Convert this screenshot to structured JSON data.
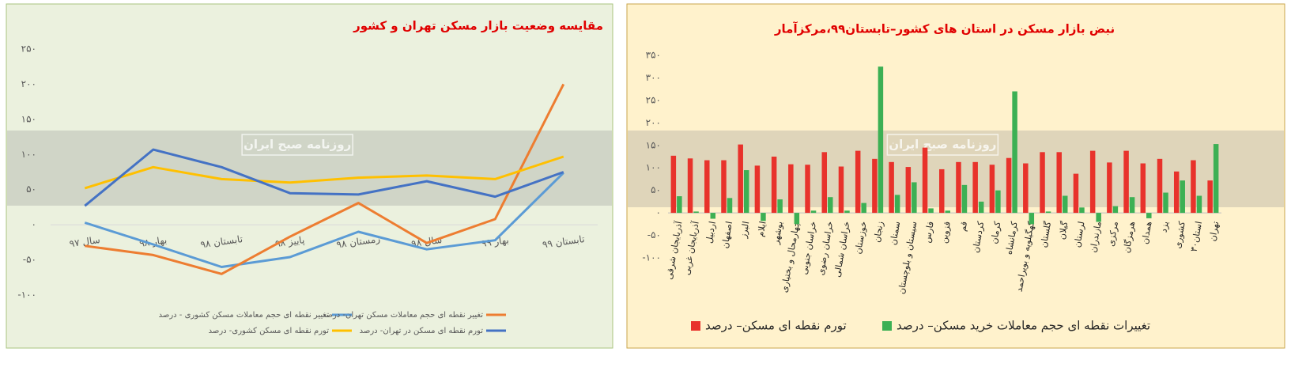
{
  "chart_data": [
    {
      "type": "line",
      "title": "مقایسه وضعیت بازار مسکن تهران و کشور",
      "watermark": "روزنامه صبح ایران",
      "categories": [
        "سال ۹۷",
        "بهار ۹۸",
        "تابستان ۹۸",
        "پاییز ۹۸",
        "زمستان ۹۸",
        "سال ۹۸",
        "بهار ۹۹",
        "تابستان ۹۹"
      ],
      "series": [
        {
          "name": "تغییر نقطه ای حجم معاملات مسکن کشوری - درصد",
          "color": "#5b9bd5",
          "values": [
            3,
            -28,
            -60,
            -46,
            -10,
            -35,
            -22,
            74
          ]
        },
        {
          "name": "تغییر نقطه ای حجم معاملات مسکن تهران- درصد",
          "color": "#ed7d31",
          "values": [
            -30,
            -43,
            -70,
            -17,
            31,
            -26,
            8,
            200
          ]
        },
        {
          "name": "تورم نقطه ای مسکن کشوری- درصد",
          "color": "#ffc000",
          "values": [
            52,
            82,
            65,
            60,
            67,
            70,
            65,
            97
          ]
        },
        {
          "name": "تورم نقطه ای مسکن در تهران- درصد",
          "color": "#4472c4",
          "values": [
            27,
            107,
            82,
            45,
            43,
            62,
            40,
            75
          ]
        }
      ],
      "ylim": [
        -100,
        250
      ],
      "yticks": [
        {
          "value": -100,
          "label": "-۱۰۰"
        },
        {
          "value": -50,
          "label": "-۵۰"
        },
        {
          "value": 0,
          "label": "۰"
        },
        {
          "value": 50,
          "label": "۵۰"
        },
        {
          "value": 100,
          "label": "۱۰۰"
        },
        {
          "value": 150,
          "label": "۱۵۰"
        },
        {
          "value": 200,
          "label": "۲۰۰"
        },
        {
          "value": 250,
          "label": "۲۵۰"
        }
      ]
    },
    {
      "type": "bar",
      "title": "نبض بازار مسکن در استان های کشور–تابستان۹۹،مرکزآمار",
      "watermark": "روزنامه صبح ایران",
      "categories": [
        "آذربایجان شرقی",
        "آذربایجان غربی",
        "اردبیل",
        "اصفهان",
        "البرز",
        "ایلام",
        "بوشهر",
        "چهارمحال و بختیاری",
        "خراسان جنوبی",
        "خراسان رضوی",
        "خراسان شمالی",
        "خوزستان",
        "زنجان",
        "سمنان",
        "سیستان و بلوچستان",
        "فارس",
        "قزوین",
        "قم",
        "کردستان",
        "کرمان",
        "کرمانشاه",
        "کهگیلویه و بویراحمد",
        "گلستان",
        "گیلان",
        "لرستان",
        "مازندران",
        "مرکزی",
        "هرمزگان",
        "همدان",
        "یزد",
        "کشوری",
        "۳۰استان",
        "تهران"
      ],
      "series": [
        {
          "name": "تورم نقطه ای مسکن– درصد",
          "color": "#e8322b",
          "values": [
            127,
            121,
            117,
            117,
            152,
            105,
            125,
            108,
            107,
            135,
            103,
            138,
            120,
            113,
            102,
            145,
            97,
            113,
            113,
            107,
            122,
            110,
            135,
            135,
            87,
            138,
            112,
            138,
            110,
            120,
            92,
            117,
            72
          ]
        },
        {
          "name": "تغییرات نقطه ای حجم معاملات خرید مسکن– درصد",
          "color": "#3cb054",
          "values": [
            37,
            3,
            -13,
            33,
            95,
            -18,
            30,
            -25,
            5,
            35,
            5,
            22,
            325,
            40,
            68,
            10,
            5,
            62,
            25,
            50,
            270,
            -25,
            3,
            38,
            12,
            -20,
            15,
            35,
            -12,
            45,
            72,
            38,
            153
          ]
        }
      ],
      "ylim": [
        -100,
        350
      ],
      "yticks": [
        {
          "value": -100,
          "label": "-۱۰۰"
        },
        {
          "value": -50,
          "label": "-۵۰"
        },
        {
          "value": 0,
          "label": "۰"
        },
        {
          "value": 50,
          "label": "۵۰"
        },
        {
          "value": 100,
          "label": "۱۰۰"
        },
        {
          "value": 150,
          "label": "۱۵۰"
        },
        {
          "value": 200,
          "label": "۲۰۰"
        },
        {
          "value": 250,
          "label": "۲۵۰"
        },
        {
          "value": 300,
          "label": "۳۰۰"
        },
        {
          "value": 350,
          "label": "۳۵۰"
        }
      ]
    }
  ]
}
